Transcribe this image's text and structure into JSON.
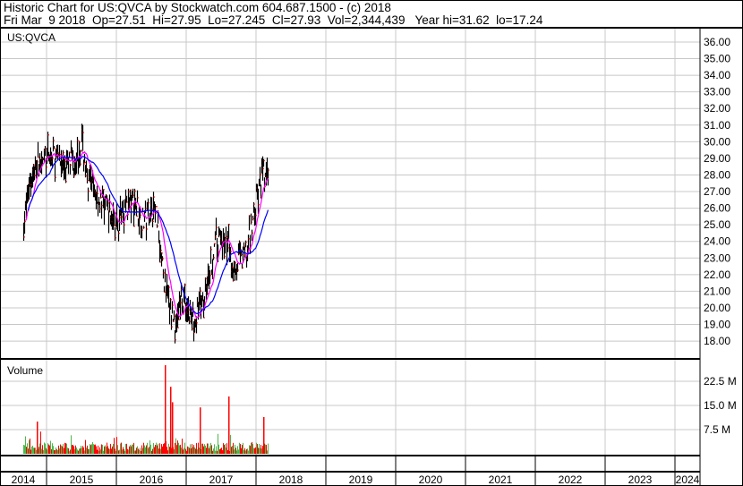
{
  "header": {
    "line1": "Historic Chart for US:QVCA by Stockwatch.com 604.687.1500 - (c) 2018",
    "line2": "Fri Mar  9 2018  Op=27.51  Hi=27.95  Lo=27.245  Cl=27.93  Vol=2,344,439   Year hi=31.62  lo=17.24"
  },
  "colors": {
    "up_volume": "#4cb84c",
    "down_volume": "#ff0000",
    "price_bar": "#000000",
    "close_tick": "#ff0000",
    "ma_short": "#ff00ff",
    "ma_long": "#0000ff",
    "grid": "#c8c8c8"
  },
  "chart_data": [
    {
      "type": "line",
      "symbol_label": "US:QVCA",
      "ylim": [
        17,
        36.5
      ],
      "y_ticks": [
        "18.00",
        "19.00",
        "20.00",
        "21.00",
        "22.00",
        "23.00",
        "24.00",
        "25.00",
        "26.00",
        "27.00",
        "28.00",
        "29.00",
        "30.00",
        "31.00",
        "32.00",
        "33.00",
        "34.00",
        "35.00",
        "36.00"
      ],
      "grid": true,
      "series": [
        {
          "style": "ohlc",
          "points": [
            [
              "2014-09",
              25.0
            ],
            [
              "2014-10",
              27.5
            ],
            [
              "2014-11",
              28.5
            ],
            [
              "2014-12",
              29.0
            ],
            [
              "2015-01",
              29.0
            ],
            [
              "2015-02",
              29.2
            ],
            [
              "2015-03",
              29.0
            ],
            [
              "2015-04",
              28.6
            ],
            [
              "2015-05",
              28.8
            ],
            [
              "2015-06",
              29.0
            ],
            [
              "2015-07",
              30.0
            ],
            [
              "2015-08",
              27.8
            ],
            [
              "2015-09",
              27.0
            ],
            [
              "2015-10",
              26.5
            ],
            [
              "2015-11",
              26.0
            ],
            [
              "2015-12",
              25.6
            ],
            [
              "2016-01",
              25.0
            ],
            [
              "2016-02",
              25.8
            ],
            [
              "2016-03",
              26.2
            ],
            [
              "2016-04",
              26.4
            ],
            [
              "2016-05",
              25.5
            ],
            [
              "2016-06",
              25.2
            ],
            [
              "2016-07",
              26.0
            ],
            [
              "2016-08",
              25.5
            ],
            [
              "2016-09",
              22.0
            ],
            [
              "2016-10",
              20.0
            ],
            [
              "2016-11",
              19.0
            ],
            [
              "2016-12",
              20.5
            ],
            [
              "2017-01",
              20.0
            ],
            [
              "2017-02",
              19.4
            ],
            [
              "2017-03",
              19.8
            ],
            [
              "2017-04",
              20.5
            ],
            [
              "2017-05",
              22.0
            ],
            [
              "2017-06",
              23.8
            ],
            [
              "2017-07",
              24.2
            ],
            [
              "2017-08",
              24.0
            ],
            [
              "2017-09",
              22.5
            ],
            [
              "2017-10",
              22.8
            ],
            [
              "2017-11",
              23.0
            ],
            [
              "2017-12",
              24.5
            ],
            [
              "2018-01",
              26.5
            ],
            [
              "2018-02",
              28.0
            ],
            [
              "2018-03",
              27.93
            ]
          ]
        },
        {
          "style": "moving-average-short"
        },
        {
          "style": "moving-average-long"
        }
      ]
    },
    {
      "type": "bar",
      "title": "Volume",
      "y_ticks": [
        "7.5 M",
        "15.0 M",
        "22.5 M"
      ],
      "ylim_millions": [
        0,
        28
      ],
      "typical_range_millions": [
        0.8,
        3.5
      ],
      "spikes_millions": [
        [
          "2014-10",
          10.0
        ],
        [
          "2016-08",
          27.5
        ],
        [
          "2016-09",
          20.8
        ],
        [
          "2016-09",
          16.0
        ],
        [
          "2017-02",
          14.4
        ],
        [
          "2017-07",
          17.8
        ],
        [
          "2018-01",
          11.4
        ]
      ]
    }
  ],
  "x_axis": {
    "years": [
      "2014",
      "2015",
      "2016",
      "2017",
      "2018",
      "2019",
      "2020",
      "2021",
      "2022",
      "2023",
      "2024"
    ]
  }
}
